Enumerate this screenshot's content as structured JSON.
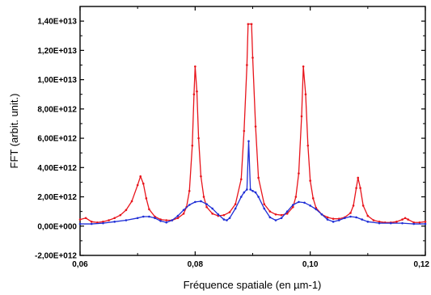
{
  "chart_data": {
    "type": "line",
    "title": "",
    "xlabel": "Fréquence spatiale (en µm-1)",
    "ylabel": "FFT (arbit. unit.)",
    "xlim": [
      0.06,
      0.12
    ],
    "ylim": [
      -2000000000000.0,
      15000000000000.0
    ],
    "x_ticks": [
      0.06,
      0.08,
      0.1,
      0.12
    ],
    "x_tick_labels": [
      "0,06",
      "0,08",
      "0,10",
      "0,12"
    ],
    "y_ticks": [
      -2000000000000.0,
      0,
      2000000000000.0,
      4000000000000.0,
      6000000000000.0,
      8000000000000.0,
      10000000000000.0,
      12000000000000.0,
      14000000000000.0
    ],
    "y_tick_labels": [
      "-2,00E+012",
      "0,00E+000",
      "2,00E+012",
      "4,00E+012",
      "6,00E+012",
      "8,00E+012",
      "1,00E+013",
      "1,20E+013",
      "1,40E+013"
    ],
    "grid": false,
    "legend": "none",
    "series": [
      {
        "color": "#e8141b",
        "points": [
          [
            0.06,
            450000000000.0
          ],
          [
            0.061,
            550000000000.0
          ],
          [
            0.062,
            300000000000.0
          ],
          [
            0.063,
            250000000000.0
          ],
          [
            0.064,
            300000000000.0
          ],
          [
            0.065,
            400000000000.0
          ],
          [
            0.066,
            550000000000.0
          ],
          [
            0.067,
            750000000000.0
          ],
          [
            0.068,
            1100000000000.0
          ],
          [
            0.069,
            1700000000000.0
          ],
          [
            0.07,
            2800000000000.0
          ],
          [
            0.0705,
            3400000000000.0
          ],
          [
            0.071,
            2900000000000.0
          ],
          [
            0.0715,
            1900000000000.0
          ],
          [
            0.072,
            1150000000000.0
          ],
          [
            0.073,
            650000000000.0
          ],
          [
            0.074,
            450000000000.0
          ],
          [
            0.075,
            400000000000.0
          ],
          [
            0.076,
            400000000000.0
          ],
          [
            0.077,
            550000000000.0
          ],
          [
            0.078,
            850000000000.0
          ],
          [
            0.0785,
            1300000000000.0
          ],
          [
            0.079,
            2400000000000.0
          ],
          [
            0.0795,
            5500000000000.0
          ],
          [
            0.0798,
            9000000000000.0
          ],
          [
            0.08,
            10900000000000.0
          ],
          [
            0.0803,
            9200000000000.0
          ],
          [
            0.0806,
            6000000000000.0
          ],
          [
            0.081,
            3400000000000.0
          ],
          [
            0.0815,
            2000000000000.0
          ],
          [
            0.082,
            1300000000000.0
          ],
          [
            0.083,
            850000000000.0
          ],
          [
            0.084,
            700000000000.0
          ],
          [
            0.085,
            750000000000.0
          ],
          [
            0.086,
            950000000000.0
          ],
          [
            0.087,
            1500000000000.0
          ],
          [
            0.088,
            3200000000000.0
          ],
          [
            0.0885,
            6500000000000.0
          ],
          [
            0.089,
            11000000000000.0
          ],
          [
            0.0892,
            13800000000000.0
          ],
          [
            0.0898,
            13800000000000.0
          ],
          [
            0.09,
            11500000000000.0
          ],
          [
            0.0905,
            6800000000000.0
          ],
          [
            0.091,
            3300000000000.0
          ],
          [
            0.092,
            1500000000000.0
          ],
          [
            0.093,
            1000000000000.0
          ],
          [
            0.094,
            800000000000.0
          ],
          [
            0.095,
            750000000000.0
          ],
          [
            0.096,
            850000000000.0
          ],
          [
            0.097,
            1300000000000.0
          ],
          [
            0.0975,
            2000000000000.0
          ],
          [
            0.098,
            3600000000000.0
          ],
          [
            0.0985,
            7500000000000.0
          ],
          [
            0.0988,
            10900000000000.0
          ],
          [
            0.0992,
            9000000000000.0
          ],
          [
            0.0996,
            5500000000000.0
          ],
          [
            0.1,
            3100000000000.0
          ],
          [
            0.1005,
            1900000000000.0
          ],
          [
            0.101,
            1250000000000.0
          ],
          [
            0.102,
            800000000000.0
          ],
          [
            0.103,
            600000000000.0
          ],
          [
            0.104,
            500000000000.0
          ],
          [
            0.105,
            500000000000.0
          ],
          [
            0.106,
            600000000000.0
          ],
          [
            0.107,
            900000000000.0
          ],
          [
            0.1075,
            1400000000000.0
          ],
          [
            0.108,
            2600000000000.0
          ],
          [
            0.1083,
            3300000000000.0
          ],
          [
            0.1087,
            2600000000000.0
          ],
          [
            0.1092,
            1400000000000.0
          ],
          [
            0.11,
            700000000000.0
          ],
          [
            0.111,
            400000000000.0
          ],
          [
            0.112,
            300000000000.0
          ],
          [
            0.113,
            250000000000.0
          ],
          [
            0.114,
            250000000000.0
          ],
          [
            0.115,
            300000000000.0
          ],
          [
            0.116,
            450000000000.0
          ],
          [
            0.1165,
            550000000000.0
          ],
          [
            0.117,
            450000000000.0
          ],
          [
            0.118,
            250000000000.0
          ],
          [
            0.119,
            250000000000.0
          ],
          [
            0.12,
            300000000000.0
          ]
        ]
      },
      {
        "color": "#1f2ed6",
        "points": [
          [
            0.06,
            150000000000.0
          ],
          [
            0.062,
            150000000000.0
          ],
          [
            0.064,
            200000000000.0
          ],
          [
            0.066,
            300000000000.0
          ],
          [
            0.068,
            400000000000.0
          ],
          [
            0.07,
            550000000000.0
          ],
          [
            0.071,
            650000000000.0
          ],
          [
            0.072,
            650000000000.0
          ],
          [
            0.073,
            550000000000.0
          ],
          [
            0.074,
            350000000000.0
          ],
          [
            0.075,
            250000000000.0
          ],
          [
            0.076,
            400000000000.0
          ],
          [
            0.077,
            700000000000.0
          ],
          [
            0.078,
            1100000000000.0
          ],
          [
            0.079,
            1450000000000.0
          ],
          [
            0.08,
            1650000000000.0
          ],
          [
            0.081,
            1700000000000.0
          ],
          [
            0.082,
            1500000000000.0
          ],
          [
            0.083,
            1200000000000.0
          ],
          [
            0.084,
            800000000000.0
          ],
          [
            0.085,
            450000000000.0
          ],
          [
            0.0855,
            400000000000.0
          ],
          [
            0.086,
            550000000000.0
          ],
          [
            0.087,
            1200000000000.0
          ],
          [
            0.088,
            2000000000000.0
          ],
          [
            0.0885,
            2300000000000.0
          ],
          [
            0.089,
            2500000000000.0
          ],
          [
            0.0893,
            5800000000000.0
          ],
          [
            0.0896,
            2500000000000.0
          ],
          [
            0.09,
            2400000000000.0
          ],
          [
            0.0905,
            2300000000000.0
          ],
          [
            0.091,
            2000000000000.0
          ],
          [
            0.092,
            1200000000000.0
          ],
          [
            0.093,
            600000000000.0
          ],
          [
            0.094,
            400000000000.0
          ],
          [
            0.095,
            550000000000.0
          ],
          [
            0.096,
            1000000000000.0
          ],
          [
            0.097,
            1450000000000.0
          ],
          [
            0.098,
            1650000000000.0
          ],
          [
            0.099,
            1600000000000.0
          ],
          [
            0.1,
            1400000000000.0
          ],
          [
            0.101,
            1150000000000.0
          ],
          [
            0.102,
            800000000000.0
          ],
          [
            0.103,
            450000000000.0
          ],
          [
            0.104,
            300000000000.0
          ],
          [
            0.105,
            400000000000.0
          ],
          [
            0.106,
            550000000000.0
          ],
          [
            0.107,
            650000000000.0
          ],
          [
            0.108,
            600000000000.0
          ],
          [
            0.109,
            450000000000.0
          ],
          [
            0.11,
            300000000000.0
          ],
          [
            0.112,
            200000000000.0
          ],
          [
            0.114,
            200000000000.0
          ],
          [
            0.116,
            200000000000.0
          ],
          [
            0.118,
            150000000000.0
          ],
          [
            0.12,
            150000000000.0
          ]
        ]
      }
    ]
  }
}
